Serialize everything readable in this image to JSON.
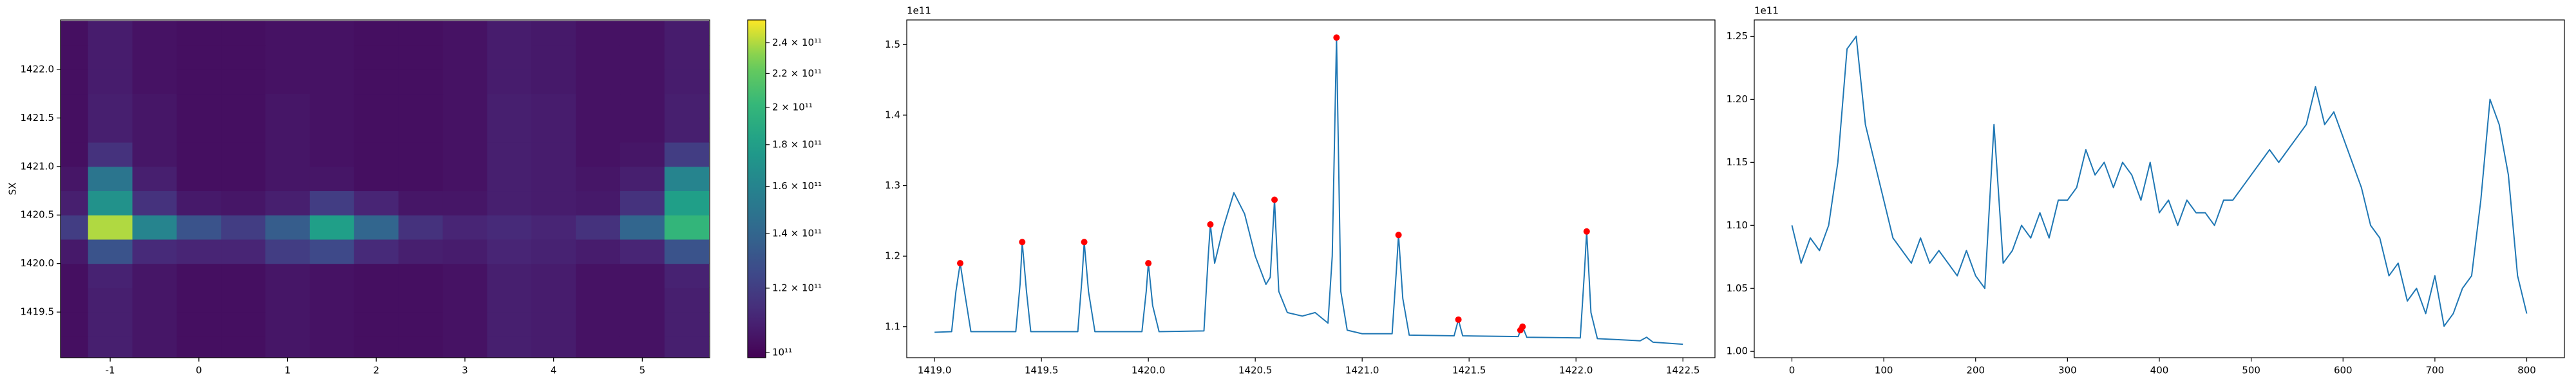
{
  "chart_data": [
    {
      "type": "heatmap",
      "ylabel": "SX",
      "x": [
        -1.5,
        -1,
        -0.5,
        0,
        0.5,
        1,
        1.5,
        2,
        2.5,
        3,
        3.5,
        4,
        4.5,
        5,
        5.5
      ],
      "y": [
        1419.125,
        1419.375,
        1419.625,
        1419.875,
        1420.125,
        1420.375,
        1420.625,
        1420.875,
        1421.125,
        1421.375,
        1421.625,
        1421.875,
        1422.125,
        1422.375
      ],
      "z": [
        [
          103000000000.0,
          108000000000.0,
          105000000000.0,
          103000000000.0,
          103000000000.0,
          105000000000.0,
          104000000000.0,
          103000000000.0,
          103000000000.0,
          104000000000.0,
          108000000000.0,
          107000000000.0,
          104000000000.0,
          104000000000.0,
          108000000000.0
        ],
        [
          103000000000.0,
          108000000000.0,
          105000000000.0,
          103000000000.0,
          103000000000.0,
          105000000000.0,
          104000000000.0,
          103000000000.0,
          103000000000.0,
          104000000000.0,
          108000000000.0,
          107000000000.0,
          104000000000.0,
          104000000000.0,
          108000000000.0
        ],
        [
          103000000000.0,
          108000000000.0,
          105000000000.0,
          103000000000.0,
          103000000000.0,
          105000000000.0,
          104000000000.0,
          103000000000.0,
          103000000000.0,
          104000000000.0,
          108000000000.0,
          107000000000.0,
          104000000000.0,
          104000000000.0,
          108000000000.0
        ],
        [
          103000000000.0,
          109000000000.0,
          105000000000.0,
          103000000000.0,
          103000000000.0,
          105000000000.0,
          104000000000.0,
          103000000000.0,
          103000000000.0,
          104000000000.0,
          108000000000.0,
          107000000000.0,
          104000000000.0,
          104000000000.0,
          109000000000.0
        ],
        [
          106000000000.0,
          130000000000.0,
          112000000000.0,
          110000000000.0,
          110000000000.0,
          120000000000.0,
          125000000000.0,
          112000000000.0,
          108000000000.0,
          107000000000.0,
          110000000000.0,
          109000000000.0,
          107000000000.0,
          110000000000.0,
          130000000000.0
        ],
        [
          120000000000.0,
          240000000000.0,
          160000000000.0,
          130000000000.0,
          120000000000.0,
          135000000000.0,
          180000000000.0,
          140000000000.0,
          115000000000.0,
          110000000000.0,
          112000000000.0,
          110000000000.0,
          115000000000.0,
          140000000000.0,
          200000000000.0
        ],
        [
          108000000000.0,
          170000000000.0,
          115000000000.0,
          106000000000.0,
          105000000000.0,
          108000000000.0,
          120000000000.0,
          110000000000.0,
          105000000000.0,
          105000000000.0,
          108000000000.0,
          107000000000.0,
          106000000000.0,
          115000000000.0,
          180000000000.0
        ],
        [
          105000000000.0,
          150000000000.0,
          108000000000.0,
          103000000000.0,
          103000000000.0,
          105000000000.0,
          105000000000.0,
          103000000000.0,
          103000000000.0,
          104000000000.0,
          108000000000.0,
          107000000000.0,
          105000000000.0,
          108000000000.0,
          160000000000.0
        ],
        [
          103000000000.0,
          115000000000.0,
          105000000000.0,
          103000000000.0,
          103000000000.0,
          105000000000.0,
          104000000000.0,
          103000000000.0,
          103000000000.0,
          104000000000.0,
          108000000000.0,
          107000000000.0,
          104000000000.0,
          105000000000.0,
          120000000000.0
        ],
        [
          103000000000.0,
          108000000000.0,
          105000000000.0,
          103000000000.0,
          103000000000.0,
          105000000000.0,
          104000000000.0,
          103000000000.0,
          103000000000.0,
          104000000000.0,
          108000000000.0,
          107000000000.0,
          104000000000.0,
          104000000000.0,
          108000000000.0
        ],
        [
          103000000000.0,
          108000000000.0,
          105000000000.0,
          103000000000.0,
          103000000000.0,
          105000000000.0,
          104000000000.0,
          103000000000.0,
          103000000000.0,
          104000000000.0,
          108000000000.0,
          107000000000.0,
          104000000000.0,
          104000000000.0,
          108000000000.0
        ],
        [
          103000000000.0,
          107000000000.0,
          104000000000.0,
          103000000000.0,
          103000000000.0,
          104000000000.0,
          104000000000.0,
          103000000000.0,
          103000000000.0,
          104000000000.0,
          107000000000.0,
          106000000000.0,
          104000000000.0,
          104000000000.0,
          107000000000.0
        ],
        [
          103000000000.0,
          107000000000.0,
          104000000000.0,
          103000000000.0,
          103000000000.0,
          104000000000.0,
          104000000000.0,
          103000000000.0,
          103000000000.0,
          104000000000.0,
          107000000000.0,
          106000000000.0,
          104000000000.0,
          104000000000.0,
          107000000000.0
        ],
        [
          103000000000.0,
          107000000000.0,
          104000000000.0,
          103000000000.0,
          103000000000.0,
          104000000000.0,
          104000000000.0,
          103000000000.0,
          103000000000.0,
          104000000000.0,
          107000000000.0,
          106000000000.0,
          104000000000.0,
          104000000000.0,
          107000000000.0
        ]
      ],
      "xlim": [
        -1.56,
        5.76
      ],
      "ylim": [
        1419.03,
        1422.51
      ],
      "xticks": [
        -1,
        0,
        1,
        2,
        3,
        4,
        5
      ],
      "yticks": [
        1419.5,
        {
          "value": 1420,
          "label": "1420.0"
        },
        1420.5,
        {
          "value": 1421,
          "label": "1421.0"
        },
        1421.5,
        {
          "value": 1422,
          "label": "1422.0"
        }
      ],
      "colorbar": {
        "cmap": "viridis",
        "scale": "log",
        "clim": [
          98600000000.0,
          256000000000.0
        ],
        "ticks": [
          {
            "value": 100000000000.0,
            "label": "10¹¹"
          },
          {
            "value": 120000000000.0,
            "label": "1.2 × 10¹¹"
          },
          {
            "value": 140000000000.0,
            "label": "1.4 × 10¹¹"
          },
          {
            "value": 160000000000.0,
            "label": "1.6 × 10¹¹"
          },
          {
            "value": 180000000000.0,
            "label": "1.8 × 10¹¹"
          },
          {
            "value": 200000000000.0,
            "label": "2 × 10¹¹"
          },
          {
            "value": 220000000000.0,
            "label": "2.2 × 10¹¹"
          },
          {
            "value": 240000000000.0,
            "label": "2.4 × 10¹¹"
          }
        ]
      }
    },
    {
      "type": "line",
      "offset_label": "1e11",
      "xlim": [
        1418.87,
        1422.65
      ],
      "ylim": [
        1.056,
        1.535
      ],
      "xticks": [
        {
          "value": 1419,
          "label": "1419.0"
        },
        1419.5,
        {
          "value": 1420,
          "label": "1420.0"
        },
        1420.5,
        {
          "value": 1421,
          "label": "1421.0"
        },
        1421.5,
        {
          "value": 1422,
          "label": "1422.0"
        },
        1422.5
      ],
      "yticks": [
        1.1,
        1.2,
        1.3,
        1.4,
        1.5
      ],
      "series": [
        {
          "style": "line",
          "color": "#1f77b4",
          "x": [
            1419.0,
            1419.08,
            1419.1,
            1419.12,
            1419.14,
            1419.17,
            1419.38,
            1419.4,
            1419.41,
            1419.43,
            1419.45,
            1419.67,
            1419.69,
            1419.7,
            1419.72,
            1419.75,
            1419.97,
            1419.99,
            1420.0,
            1420.02,
            1420.05,
            1420.26,
            1420.28,
            1420.29,
            1420.31,
            1420.35,
            1420.4,
            1420.45,
            1420.5,
            1420.55,
            1420.57,
            1420.59,
            1420.61,
            1420.65,
            1420.72,
            1420.78,
            1420.84,
            1420.86,
            1420.88,
            1420.9,
            1420.93,
            1421.0,
            1421.14,
            1421.16,
            1421.17,
            1421.19,
            1421.22,
            1421.43,
            1421.45,
            1421.47,
            1421.73,
            1421.74,
            1421.75,
            1421.77,
            1422.02,
            1422.04,
            1422.05,
            1422.07,
            1422.1,
            1422.3,
            1422.33,
            1422.36,
            1422.5
          ],
          "values": [
            1.092,
            1.093,
            1.15,
            1.19,
            1.15,
            1.093,
            1.093,
            1.16,
            1.22,
            1.15,
            1.093,
            1.093,
            1.17,
            1.22,
            1.15,
            1.093,
            1.093,
            1.15,
            1.19,
            1.13,
            1.093,
            1.094,
            1.2,
            1.245,
            1.19,
            1.24,
            1.29,
            1.26,
            1.2,
            1.16,
            1.17,
            1.28,
            1.15,
            1.12,
            1.115,
            1.12,
            1.105,
            1.2,
            1.51,
            1.15,
            1.095,
            1.09,
            1.09,
            1.18,
            1.23,
            1.14,
            1.088,
            1.087,
            1.11,
            1.087,
            1.086,
            1.095,
            1.1,
            1.085,
            1.084,
            1.18,
            1.235,
            1.12,
            1.083,
            1.08,
            1.085,
            1.078,
            1.075
          ]
        },
        {
          "style": "markers",
          "color": "#ff0000",
          "x": [
            1419.12,
            1419.41,
            1419.7,
            1420.0,
            1420.29,
            1420.59,
            1420.88,
            1421.17,
            1421.45,
            1421.74,
            1421.75,
            1422.05
          ],
          "values": [
            1.19,
            1.22,
            1.22,
            1.19,
            1.245,
            1.28,
            1.51,
            1.23,
            1.11,
            1.095,
            1.1,
            1.235
          ]
        }
      ]
    },
    {
      "type": "line",
      "offset_label": "1e11",
      "xlim": [
        -41,
        841
      ],
      "ylim": [
        0.995,
        1.263
      ],
      "xticks": [
        0,
        100,
        200,
        300,
        400,
        500,
        600,
        700,
        800
      ],
      "yticks": [
        {
          "value": 1,
          "label": "1.00"
        },
        {
          "value": 1.05,
          "label": "1.05"
        },
        {
          "value": 1.1,
          "label": "1.10"
        },
        {
          "value": 1.15,
          "label": "1.15"
        },
        {
          "value": 1.2,
          "label": "1.20"
        },
        {
          "value": 1.25,
          "label": "1.25"
        }
      ],
      "series": [
        {
          "style": "line",
          "color": "#1f77b4",
          "x": [
            0,
            10,
            20,
            30,
            40,
            50,
            60,
            70,
            80,
            90,
            100,
            110,
            120,
            130,
            140,
            150,
            160,
            170,
            180,
            190,
            200,
            210,
            220,
            230,
            240,
            250,
            260,
            270,
            280,
            290,
            300,
            310,
            320,
            330,
            340,
            350,
            360,
            370,
            380,
            390,
            400,
            410,
            420,
            430,
            440,
            450,
            460,
            470,
            480,
            490,
            500,
            510,
            520,
            530,
            540,
            550,
            560,
            570,
            580,
            590,
            600,
            610,
            620,
            630,
            640,
            650,
            660,
            670,
            680,
            690,
            700,
            710,
            720,
            730,
            740,
            750,
            760,
            770,
            780,
            790,
            800
          ],
          "values": [
            1.1,
            1.07,
            1.09,
            1.08,
            1.1,
            1.15,
            1.24,
            1.25,
            1.18,
            1.15,
            1.12,
            1.09,
            1.08,
            1.07,
            1.09,
            1.07,
            1.08,
            1.07,
            1.06,
            1.08,
            1.06,
            1.05,
            1.18,
            1.07,
            1.08,
            1.1,
            1.09,
            1.11,
            1.09,
            1.12,
            1.12,
            1.13,
            1.16,
            1.14,
            1.15,
            1.13,
            1.15,
            1.14,
            1.12,
            1.15,
            1.11,
            1.12,
            1.1,
            1.12,
            1.11,
            1.11,
            1.1,
            1.12,
            1.12,
            1.13,
            1.14,
            1.15,
            1.16,
            1.15,
            1.16,
            1.17,
            1.18,
            1.21,
            1.18,
            1.19,
            1.17,
            1.15,
            1.13,
            1.1,
            1.09,
            1.06,
            1.07,
            1.04,
            1.05,
            1.03,
            1.06,
            1.02,
            1.03,
            1.05,
            1.06,
            1.12,
            1.2,
            1.18,
            1.14,
            1.06,
            1.03
          ]
        }
      ]
    }
  ]
}
